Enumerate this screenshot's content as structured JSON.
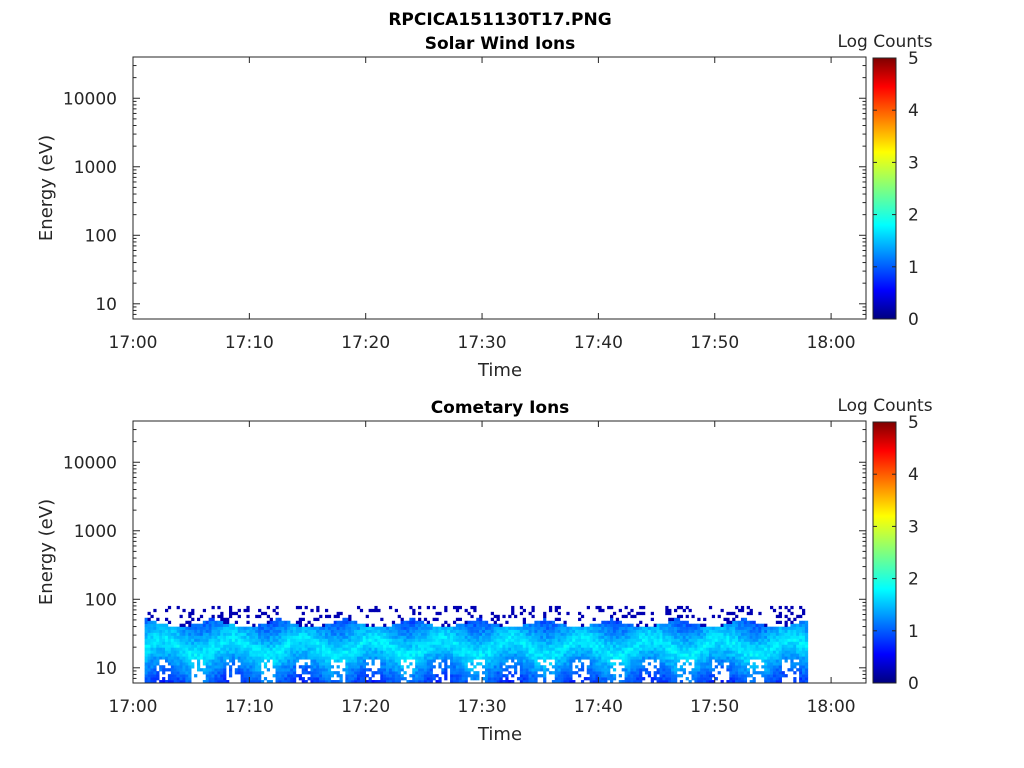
{
  "figure_title": "RPCICA151130T17.PNG",
  "chart_data": [
    {
      "type": "heatmap",
      "title": "Solar Wind Ions",
      "xlabel": "Time",
      "ylabel": "Energy (eV)",
      "x_ticks": [
        "17:00",
        "17:10",
        "17:20",
        "17:30",
        "17:40",
        "17:50",
        "18:00"
      ],
      "x_range": [
        "17:00",
        "18:03"
      ],
      "y_scale": "log",
      "y_ticks": [
        "10",
        "100",
        "1000",
        "10000"
      ],
      "y_range": [
        6,
        40000
      ],
      "colorbar": {
        "label": "Log Counts",
        "ticks": [
          "0",
          "1",
          "2",
          "3",
          "4",
          "5"
        ],
        "range": [
          0,
          5
        ],
        "colormap": "jet"
      },
      "data_present": false
    },
    {
      "type": "heatmap",
      "title": "Cometary Ions",
      "xlabel": "Time",
      "ylabel": "Energy (eV)",
      "x_ticks": [
        "17:00",
        "17:10",
        "17:20",
        "17:30",
        "17:40",
        "17:50",
        "18:00"
      ],
      "x_range": [
        "17:00",
        "18:03"
      ],
      "y_scale": "log",
      "y_ticks": [
        "10",
        "100",
        "1000",
        "10000"
      ],
      "y_range": [
        6,
        40000
      ],
      "colorbar": {
        "label": "Log Counts",
        "ticks": [
          "0",
          "1",
          "2",
          "3",
          "4",
          "5"
        ],
        "range": [
          0,
          5
        ],
        "colormap": "jet"
      },
      "data_present": true,
      "data_time_range": [
        "17:01",
        "17:58"
      ],
      "energy_range_eV": [
        6,
        80
      ],
      "peak_energy_eV": 20,
      "typical_log_counts": 1.8
    }
  ]
}
